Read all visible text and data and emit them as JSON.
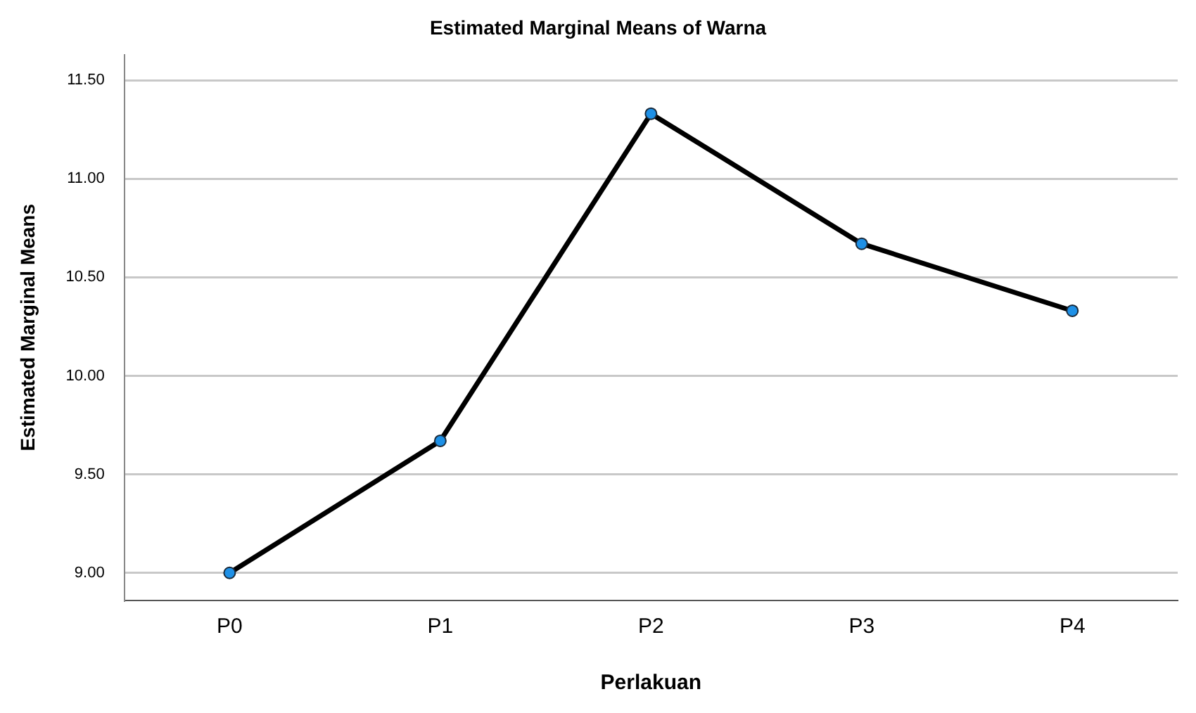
{
  "chart_data": {
    "type": "line",
    "title": "Estimated Marginal Means of Warna",
    "xlabel": "Perlakuan",
    "ylabel": "Estimated Marginal Means",
    "categories": [
      "P0",
      "P1",
      "P2",
      "P3",
      "P4"
    ],
    "series": [
      {
        "color": "#000000",
        "values": [
          9.0,
          9.67,
          11.33,
          10.67,
          10.33
        ]
      }
    ],
    "ylim": [
      8.86,
      11.63
    ],
    "yticks": [
      {
        "value": 9,
        "label": "9.00"
      },
      {
        "value": 9.5,
        "label": "9.50"
      },
      {
        "value": 10,
        "label": "10.00"
      },
      {
        "value": 10.5,
        "label": "10.50"
      },
      {
        "value": 11,
        "label": "11.00"
      },
      {
        "value": 11.5,
        "label": "11.50"
      }
    ],
    "grid": "y",
    "marker": "circle",
    "line_style": "solid"
  }
}
